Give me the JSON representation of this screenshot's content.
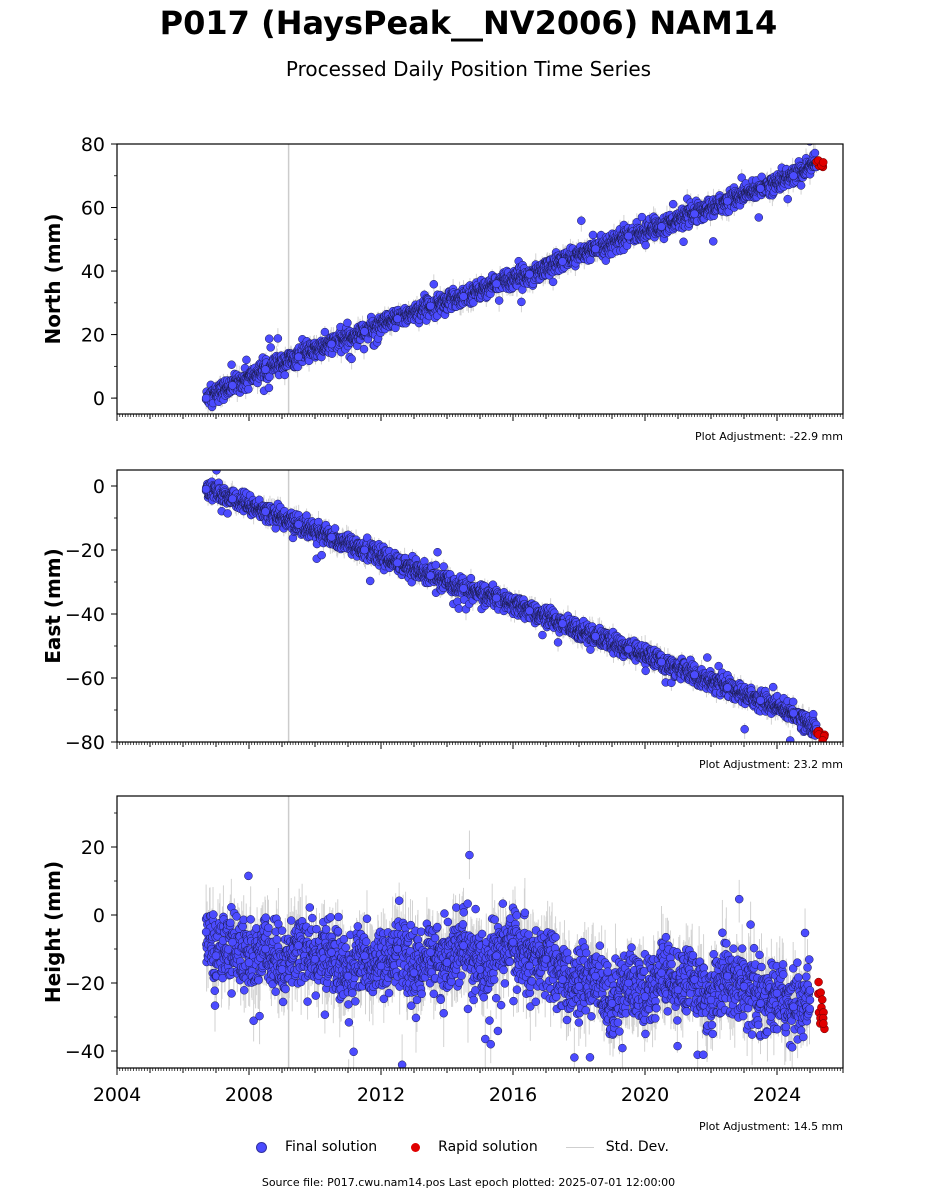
{
  "header": {
    "title": "P017 (HaysPeak__NV2006) NAM14",
    "subtitle": "Processed Daily Position Time Series"
  },
  "legend": {
    "final_label": "Final solution",
    "rapid_label": "Rapid solution",
    "std_label": "Std. Dev."
  },
  "footer": {
    "source": "Source file: P017.cwu.nam14.pos  Last epoch plotted: 2025-07-01 12:00:00"
  },
  "colors": {
    "final": "#4b4bff",
    "rapid": "#e00000",
    "std": "#c0c0c0",
    "vline": "#cccccc"
  },
  "chart_data": [
    {
      "type": "scatter",
      "ylabel": "North (mm)",
      "adjustment": "Plot Adjustment: -22.9 mm",
      "xlim": [
        2004.0,
        2026.0
      ],
      "ylim": [
        -5,
        80
      ],
      "yticks": [
        0,
        20,
        40,
        60,
        80
      ],
      "yticks_labels": [
        "0",
        "20",
        "40",
        "60",
        "80"
      ],
      "vline_x": 2009.2,
      "series": [
        {
          "name": "Final solution",
          "x": [
            2006.7,
            2007.5,
            2008.5,
            2009.5,
            2010.5,
            2011.5,
            2012.5,
            2013.5,
            2014.5,
            2015.5,
            2016.5,
            2017.5,
            2018.5,
            2019.5,
            2020.5,
            2021.5,
            2022.5,
            2023.5,
            2024.5,
            2025.2
          ],
          "y": [
            0,
            4,
            9,
            13,
            17,
            21,
            25,
            29,
            32,
            36,
            39,
            43,
            47,
            51,
            54,
            58,
            62,
            66,
            70,
            74
          ]
        },
        {
          "name": "Rapid solution",
          "x": [
            2025.25,
            2025.4
          ],
          "y": [
            74,
            73
          ]
        }
      ]
    },
    {
      "type": "scatter",
      "ylabel": "East (mm)",
      "adjustment": "Plot Adjustment: 23.2 mm",
      "xlim": [
        2004.0,
        2026.0
      ],
      "ylim": [
        -80,
        5
      ],
      "yticks": [
        -80,
        -60,
        -40,
        -20,
        0
      ],
      "yticks_labels": [
        "−80",
        "−60",
        "−40",
        "−20",
        "0"
      ],
      "vline_x": 2009.2,
      "series": [
        {
          "name": "Final solution",
          "x": [
            2006.7,
            2007.5,
            2008.5,
            2009.5,
            2010.5,
            2011.5,
            2012.5,
            2013.5,
            2014.5,
            2015.5,
            2016.5,
            2017.5,
            2018.5,
            2019.5,
            2020.5,
            2021.5,
            2022.5,
            2023.5,
            2024.5,
            2025.2
          ],
          "y": [
            -1,
            -4,
            -8,
            -12,
            -16,
            -20,
            -24,
            -28,
            -32,
            -35,
            -39,
            -43,
            -47,
            -51,
            -55,
            -59,
            -63,
            -67,
            -71,
            -76
          ]
        },
        {
          "name": "Rapid solution",
          "x": [
            2025.25,
            2025.4
          ],
          "y": [
            -77,
            -78
          ]
        }
      ]
    },
    {
      "type": "scatter",
      "ylabel": "Height (mm)",
      "adjustment": "Plot Adjustment: 14.5 mm",
      "xlim": [
        2004.0,
        2026.0
      ],
      "ylim": [
        -45,
        35
      ],
      "yticks": [
        -40,
        -20,
        0,
        20
      ],
      "yticks_labels": [
        "−40",
        "−20",
        "0",
        "20"
      ],
      "xticks": [
        2004,
        2008,
        2012,
        2016,
        2020,
        2024
      ],
      "vline_x": 2009.2,
      "series": [
        {
          "name": "Final solution",
          "x": [
            2006.7,
            2007.0,
            2007.5,
            2008.0,
            2008.5,
            2009.0,
            2009.5,
            2010.0,
            2010.5,
            2011.0,
            2011.5,
            2012.0,
            2012.5,
            2013.0,
            2013.5,
            2014.0,
            2014.5,
            2015.0,
            2015.5,
            2016.0,
            2016.5,
            2017.0,
            2017.5,
            2018.0,
            2018.5,
            2019.0,
            2019.5,
            2020.0,
            2020.5,
            2021.0,
            2021.5,
            2022.0,
            2022.5,
            2023.0,
            2023.5,
            2024.0,
            2024.5,
            2025.0
          ],
          "y": [
            -5,
            -12,
            -8,
            -14,
            -10,
            -16,
            -9,
            -13,
            -11,
            -18,
            -12,
            -15,
            -10,
            -17,
            -11,
            -14,
            -9,
            -16,
            -12,
            -8,
            -15,
            -13,
            -19,
            -21,
            -18,
            -26,
            -20,
            -24,
            -17,
            -22,
            -19,
            -25,
            -18,
            -21,
            -26,
            -23,
            -27,
            -25
          ]
        },
        {
          "name": "Rapid solution",
          "x": [
            2025.3,
            2025.35,
            2025.4
          ],
          "y": [
            -24,
            -28,
            -31
          ]
        }
      ]
    }
  ]
}
